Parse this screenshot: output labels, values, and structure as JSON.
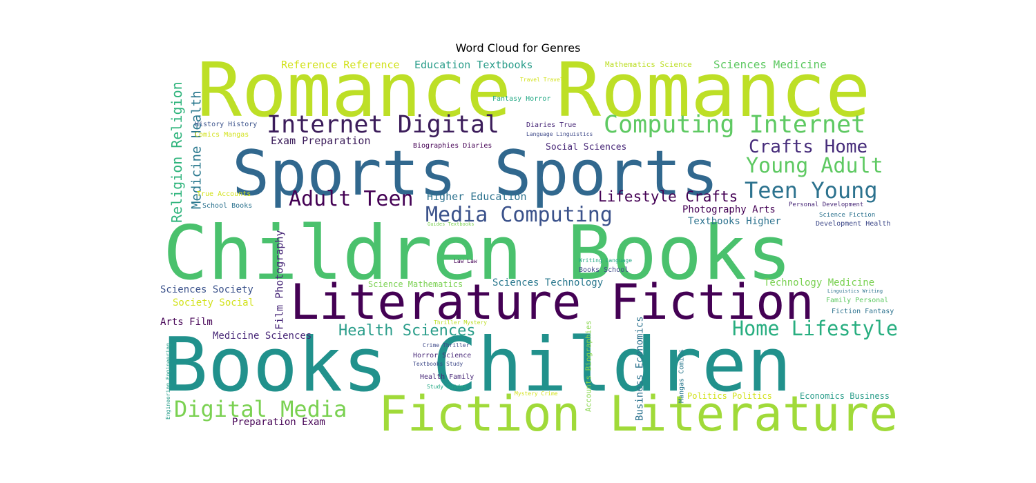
{
  "title": "Word Cloud for Genres",
  "words": [
    {
      "text": "Romance Romance",
      "color": "#bddf26"
    },
    {
      "text": "Sports Sports",
      "color": "#31688e"
    },
    {
      "text": "Children Books",
      "color": "#4ac16d"
    },
    {
      "text": "Literature Fiction",
      "color": "#440154"
    },
    {
      "text": "Books Children",
      "color": "#21918c"
    },
    {
      "text": "Fiction Literature",
      "color": "#a0da39"
    },
    {
      "text": "Internet Digital",
      "color": "#3b1c5a"
    },
    {
      "text": "Computing Internet",
      "color": "#5ec962"
    },
    {
      "text": "Crafts Home",
      "color": "#472d7b"
    },
    {
      "text": "Young Adult",
      "color": "#5ec962"
    },
    {
      "text": "Teen Young",
      "color": "#2c728e"
    },
    {
      "text": "Adult Teen",
      "color": "#440154"
    },
    {
      "text": "Media Computing",
      "color": "#3b528b"
    },
    {
      "text": "Lifestyle Crafts",
      "color": "#440154"
    },
    {
      "text": "Home Lifestyle",
      "color": "#28ae80"
    },
    {
      "text": "Health Sciences",
      "color": "#2a9d8a"
    },
    {
      "text": "Digital Media",
      "color": "#7ad151"
    },
    {
      "text": "Religion Religion",
      "color": "#2fb47c"
    },
    {
      "text": "Medicine Health",
      "color": "#2a788e"
    },
    {
      "text": "Reference Reference",
      "color": "#d2e21b"
    },
    {
      "text": "Education Textbooks",
      "color": "#2a9d8a"
    },
    {
      "text": "Mathematics Science",
      "color": "#bddf26"
    },
    {
      "text": "Sciences Medicine",
      "color": "#5ec962"
    },
    {
      "text": "Exam Preparation",
      "color": "#3b1c5a"
    },
    {
      "text": "Social Sciences",
      "color": "#482878"
    },
    {
      "text": "Higher Education",
      "color": "#2c728e"
    },
    {
      "text": "Photography Arts",
      "color": "#440154"
    },
    {
      "text": "Textbooks Higher",
      "color": "#2c728e"
    },
    {
      "text": "Film Photography",
      "color": "#482878"
    },
    {
      "text": "Sciences Society",
      "color": "#3b528b"
    },
    {
      "text": "Society Social",
      "color": "#d2e21b"
    },
    {
      "text": "Arts Film",
      "color": "#440154"
    },
    {
      "text": "Medicine Sciences",
      "color": "#482878"
    },
    {
      "text": "Sciences Technology",
      "color": "#2a788e"
    },
    {
      "text": "Science Mathematics",
      "color": "#7ad151"
    },
    {
      "text": "Technology Medicine",
      "color": "#7ad151"
    },
    {
      "text": "Preparation Exam",
      "color": "#440154"
    },
    {
      "text": "History History",
      "color": "#3b528b"
    },
    {
      "text": "Comics Mangas",
      "color": "#d2e21b"
    },
    {
      "text": "True Accounts",
      "color": "#d2e21b"
    },
    {
      "text": "School Books",
      "color": "#2c728e"
    },
    {
      "text": "Travel Travel",
      "color": "#d2e21b"
    },
    {
      "text": "Fantasy Horror",
      "color": "#22a884"
    },
    {
      "text": "Diaries True",
      "color": "#482878"
    },
    {
      "text": "Language Linguistics",
      "color": "#3e4989"
    },
    {
      "text": "Biographies Diaries",
      "color": "#440154"
    },
    {
      "text": "Guides Textbooks",
      "color": "#7ad151"
    },
    {
      "text": "Personal Development",
      "color": "#482878"
    },
    {
      "text": "Science Fiction",
      "color": "#2c728e"
    },
    {
      "text": "Development Health",
      "color": "#3e4989"
    },
    {
      "text": "Law Law",
      "color": "#440154"
    },
    {
      "text": "Writing Language",
      "color": "#22a884"
    },
    {
      "text": "Books School",
      "color": "#3e4989"
    },
    {
      "text": "Linguistics Writing",
      "color": "#2c728e"
    },
    {
      "text": "Family Personal",
      "color": "#5ec962"
    },
    {
      "text": "Fiction Fantasy",
      "color": "#2c728e"
    },
    {
      "text": "Thriller Mystery",
      "color": "#bddf26"
    },
    {
      "text": "Crime Thriller",
      "color": "#3e4989"
    },
    {
      "text": "Horror Science",
      "color": "#482878"
    },
    {
      "text": "Textbooks Study",
      "color": "#3e4989"
    },
    {
      "text": "Health Family",
      "color": "#482878"
    },
    {
      "text": "Study Guides",
      "color": "#22a884"
    },
    {
      "text": "Mystery Crime",
      "color": "#d2e21b"
    },
    {
      "text": "Accounts Biographies",
      "color": "#86d549"
    },
    {
      "text": "Business Economics",
      "color": "#2c728e"
    },
    {
      "text": "Mangas Comics",
      "color": "#2a788e"
    },
    {
      "text": "Politics Politics",
      "color": "#d2e21b"
    },
    {
      "text": "Economics Business",
      "color": "#2a9d8a"
    },
    {
      "text": "Engineering Engineering",
      "color": "#2a9d8a"
    }
  ]
}
